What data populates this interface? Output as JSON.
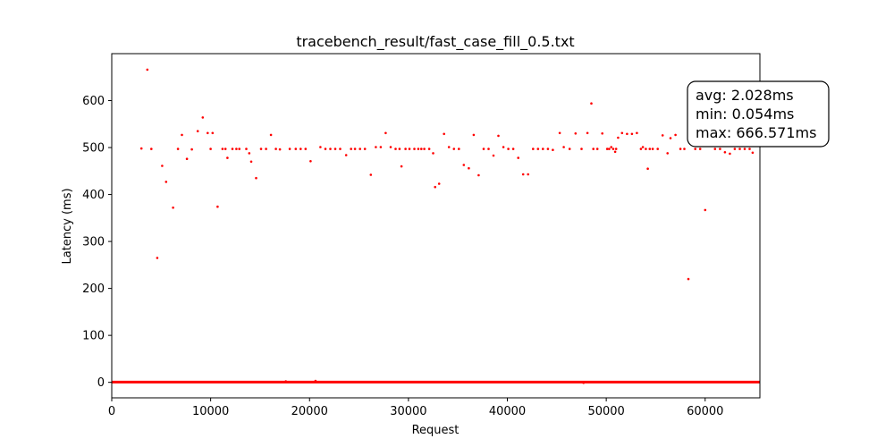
{
  "chart_data": {
    "type": "scatter",
    "title": "tracebench_result/fast_case_fill_0.5.txt",
    "xlabel": "Request",
    "ylabel": "Latency (ms)",
    "xlim": [
      0,
      65536
    ],
    "ylim": [
      -33,
      700
    ],
    "xticks": [
      0,
      10000,
      20000,
      30000,
      40000,
      50000,
      60000
    ],
    "yticks": [
      0,
      100,
      200,
      300,
      400,
      500,
      600
    ],
    "grid": false,
    "color": "#ff0000",
    "baseline": {
      "x_start": 0,
      "x_end": 65536,
      "y": 0.5
    },
    "annotation": {
      "lines": [
        "avg: 2.028ms",
        "min: 0.054ms",
        "max: 666.571ms"
      ]
    },
    "points": [
      [
        3000,
        498
      ],
      [
        3600,
        666
      ],
      [
        4000,
        497
      ],
      [
        4600,
        265
      ],
      [
        5100,
        461
      ],
      [
        5500,
        427
      ],
      [
        6200,
        372
      ],
      [
        6700,
        497
      ],
      [
        7100,
        527
      ],
      [
        7600,
        476
      ],
      [
        8100,
        496
      ],
      [
        8700,
        535
      ],
      [
        9200,
        564
      ],
      [
        9700,
        531
      ],
      [
        10000,
        497
      ],
      [
        10200,
        531
      ],
      [
        10700,
        374
      ],
      [
        11200,
        497
      ],
      [
        11500,
        497
      ],
      [
        11700,
        478
      ],
      [
        12200,
        497
      ],
      [
        12600,
        497
      ],
      [
        12900,
        497
      ],
      [
        13600,
        497
      ],
      [
        13900,
        488
      ],
      [
        14100,
        470
      ],
      [
        14600,
        435
      ],
      [
        15100,
        497
      ],
      [
        15600,
        497
      ],
      [
        16100,
        527
      ],
      [
        16600,
        497
      ],
      [
        17000,
        496
      ],
      [
        17600,
        2
      ],
      [
        18000,
        497
      ],
      [
        18600,
        497
      ],
      [
        19100,
        497
      ],
      [
        19600,
        497
      ],
      [
        20100,
        471
      ],
      [
        20600,
        3
      ],
      [
        21100,
        501
      ],
      [
        21600,
        497
      ],
      [
        22100,
        497
      ],
      [
        22600,
        497
      ],
      [
        23100,
        497
      ],
      [
        23700,
        484
      ],
      [
        24200,
        497
      ],
      [
        24600,
        497
      ],
      [
        25100,
        497
      ],
      [
        25600,
        497
      ],
      [
        26200,
        442
      ],
      [
        26700,
        501
      ],
      [
        27200,
        501
      ],
      [
        27700,
        531
      ],
      [
        28200,
        501
      ],
      [
        28700,
        497
      ],
      [
        29100,
        497
      ],
      [
        29300,
        460
      ],
      [
        29700,
        497
      ],
      [
        30100,
        497
      ],
      [
        30600,
        497
      ],
      [
        31000,
        497
      ],
      [
        31300,
        497
      ],
      [
        31600,
        497
      ],
      [
        32100,
        497
      ],
      [
        32500,
        488
      ],
      [
        32700,
        416
      ],
      [
        33100,
        423
      ],
      [
        33600,
        529
      ],
      [
        34100,
        501
      ],
      [
        34600,
        497
      ],
      [
        35100,
        497
      ],
      [
        35600,
        463
      ],
      [
        36100,
        456
      ],
      [
        36600,
        527
      ],
      [
        37100,
        441
      ],
      [
        37600,
        497
      ],
      [
        38100,
        497
      ],
      [
        38600,
        483
      ],
      [
        39100,
        525
      ],
      [
        39600,
        501
      ],
      [
        40100,
        497
      ],
      [
        40600,
        497
      ],
      [
        41100,
        478
      ],
      [
        41600,
        443
      ],
      [
        42100,
        443
      ],
      [
        42600,
        497
      ],
      [
        43100,
        497
      ],
      [
        43600,
        497
      ],
      [
        44100,
        497
      ],
      [
        44600,
        495
      ],
      [
        45300,
        531
      ],
      [
        45700,
        501
      ],
      [
        46300,
        497
      ],
      [
        46900,
        530
      ],
      [
        47500,
        497
      ],
      [
        47700,
        -1
      ],
      [
        48100,
        531
      ],
      [
        48500,
        594
      ],
      [
        48700,
        497
      ],
      [
        49100,
        497
      ],
      [
        49600,
        530
      ],
      [
        50100,
        497
      ],
      [
        50300,
        497
      ],
      [
        50500,
        501
      ],
      [
        50700,
        497
      ],
      [
        50900,
        491
      ],
      [
        51000,
        497
      ],
      [
        51200,
        521
      ],
      [
        51600,
        531
      ],
      [
        52100,
        529
      ],
      [
        52600,
        529
      ],
      [
        53100,
        531
      ],
      [
        53500,
        497
      ],
      [
        53700,
        501
      ],
      [
        54000,
        497
      ],
      [
        54200,
        455
      ],
      [
        54400,
        497
      ],
      [
        54700,
        497
      ],
      [
        55200,
        497
      ],
      [
        55700,
        526
      ],
      [
        56200,
        488
      ],
      [
        56500,
        520
      ],
      [
        57000,
        527
      ],
      [
        57500,
        497
      ],
      [
        57900,
        497
      ],
      [
        58300,
        220
      ],
      [
        59000,
        497
      ],
      [
        59500,
        497
      ],
      [
        60000,
        367
      ],
      [
        61000,
        497
      ],
      [
        61500,
        497
      ],
      [
        62000,
        490
      ],
      [
        62500,
        487
      ],
      [
        63000,
        497
      ],
      [
        63500,
        497
      ],
      [
        64000,
        497
      ],
      [
        64500,
        497
      ],
      [
        64800,
        489
      ]
    ]
  }
}
